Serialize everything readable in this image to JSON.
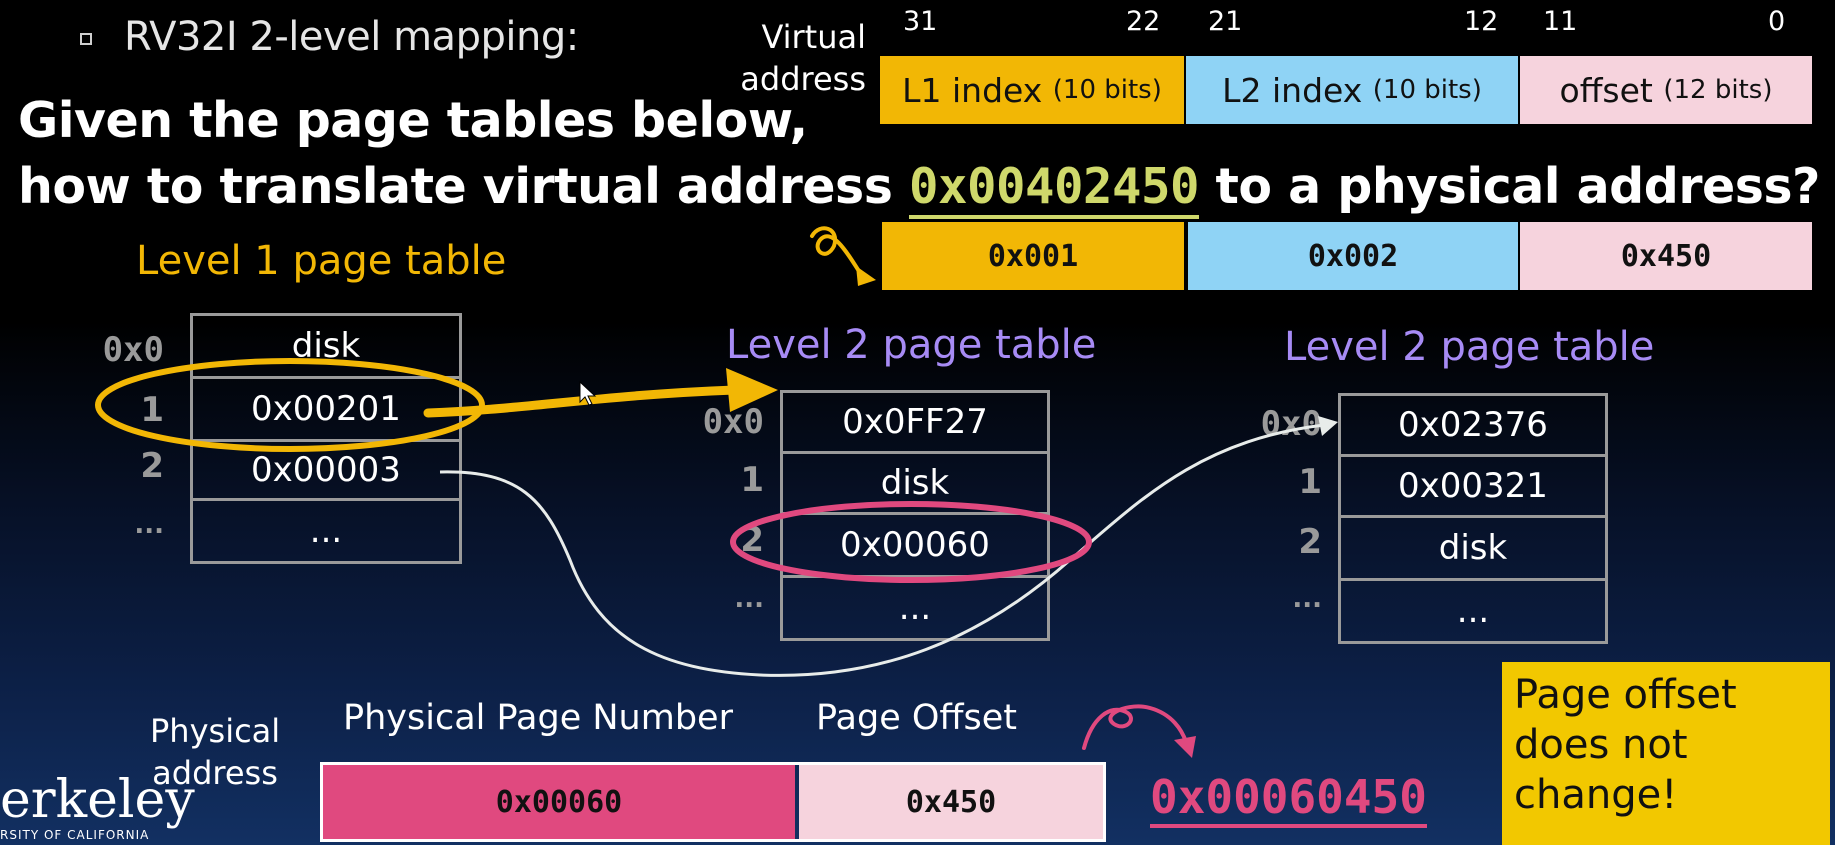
{
  "bullet": "RV32I 2-level mapping:",
  "question": {
    "line1": "Given the page tables below,",
    "line2_before": "how to translate virtual address ",
    "address": "0x00402450",
    "line2_after": " to a physical address?"
  },
  "virtual_address": {
    "label_line1": "Virtual",
    "label_line2": "address",
    "bits": [
      "31",
      "22",
      "21",
      "12",
      "11",
      "0"
    ],
    "fields": [
      {
        "name": "L1 index",
        "size": "(10 bits)",
        "value": "0x001",
        "color": "#f2b705"
      },
      {
        "name": "L2 index",
        "size": "(10 bits)",
        "value": "0x002",
        "color": "#8fd3f5"
      },
      {
        "name": "offset",
        "size": "(12 bits)",
        "value": "0x450",
        "color": "#f6d3dd"
      }
    ]
  },
  "level1": {
    "title": "Level 1 page table",
    "title_color": "#f2b705",
    "indices": [
      "0x0",
      "1",
      "2",
      "..."
    ],
    "entries": [
      "disk",
      "0x00201",
      "0x00003",
      "..."
    ]
  },
  "level2_a": {
    "title": "Level 2 page table",
    "title_color": "#a78bf5",
    "indices": [
      "0x0",
      "1",
      "2",
      "..."
    ],
    "entries": [
      "0x0FF27",
      "disk",
      "0x00060",
      "..."
    ]
  },
  "level2_b": {
    "title": "Level 2 page table",
    "title_color": "#a78bf5",
    "indices": [
      "0x0",
      "1",
      "2",
      "..."
    ],
    "entries": [
      "0x02376",
      "0x00321",
      "disk",
      "..."
    ]
  },
  "physical_address": {
    "label_line1": "Physical",
    "label_line2": "address",
    "ppn_header": "Physical Page Number",
    "offset_header": "Page Offset",
    "ppn_value": "0x00060",
    "offset_value": "0x450",
    "ppn_color": "#e0497f",
    "offset_color": "#f6d3dd"
  },
  "result": "0x00060450",
  "note": {
    "line1": "Page offset",
    "line2": "does not",
    "line3": "change!"
  },
  "logo": {
    "text": "erkeley",
    "sub": "RSITY OF CALIFORNIA"
  },
  "colors": {
    "highlight_yellow": "#f2b705",
    "highlight_pink": "#e0497f",
    "arrow_white": "#e8ecea"
  }
}
